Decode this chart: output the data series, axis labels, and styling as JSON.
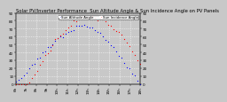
{
  "title": "Solar PV/Inverter Performance  Sun Altitude Angle & Sun Incidence Angle on PV Panels",
  "background_color": "#c8c8c8",
  "plot_bg_color": "#c8c8c8",
  "grid_color": "#ffffff",
  "legend_labels": [
    "Sun Altitude Angle",
    "Sun Incidence Angle"
  ],
  "legend_colors": [
    "#0000ff",
    "#ff0000"
  ],
  "title_fontsize": 3.8,
  "tick_fontsize": 3.0,
  "ylim": [
    0,
    90
  ],
  "marker_size": 0.8,
  "num_points": 48,
  "yticks": [
    0,
    10,
    20,
    30,
    40,
    50,
    60,
    70,
    80,
    90
  ],
  "xlabels": [
    "6h",
    "7h",
    "8h",
    "9h",
    "10h",
    "11h",
    "12h",
    "13h",
    "14h",
    "15h",
    "16h",
    "17h",
    "18h"
  ],
  "altitude_peak": 75,
  "incidence_max": 85,
  "noise_std": 1.5
}
